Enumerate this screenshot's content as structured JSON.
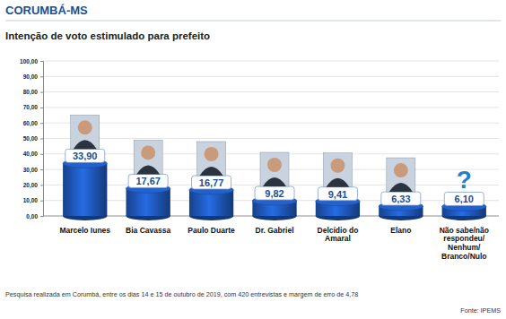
{
  "chart_data": {
    "type": "bar",
    "title": "CORUMBÁ-MS",
    "subtitle": "Intenção de voto estimulado para prefeito",
    "categories": [
      "Marcelo Iunes",
      "Bia Cavassa",
      "Paulo Duarte",
      "Dr. Gabriel",
      "Delcídio do Amaral",
      "Elano",
      "Não sabe/não respondeu/ Nenhum/Branco/Nulo"
    ],
    "values": [
      33.9,
      17.67,
      16.77,
      9.82,
      9.41,
      6.33,
      6.1
    ],
    "value_labels": [
      "33,90",
      "17,67",
      "16,77",
      "9,82",
      "9,41",
      "6,33",
      "6,10"
    ],
    "data_labels": true,
    "color": "#1f57b8",
    "ylim": [
      0,
      100
    ],
    "yticks": [
      {
        "value": 0,
        "label": "0,00"
      },
      {
        "value": 10,
        "label": "10,00"
      },
      {
        "value": 20,
        "label": "20,00"
      },
      {
        "value": 30,
        "label": "30,00"
      },
      {
        "value": 40,
        "label": "40,00"
      },
      {
        "value": 50,
        "label": "50,00"
      },
      {
        "value": 60,
        "label": "60,00"
      },
      {
        "value": 70,
        "label": "70,00"
      },
      {
        "value": 80,
        "label": "80,00"
      },
      {
        "value": 90,
        "label": "90,00"
      },
      {
        "value": 100,
        "label": "100,00"
      }
    ],
    "grid": true,
    "annotations": [
      "Pesquisa realizada em Corumbá, entre os dias 14 e 15 de outubro de 2019, com 420 entrevistas e margem de erro de 4,78",
      "Fonte: IPEMS",
      "?"
    ]
  }
}
